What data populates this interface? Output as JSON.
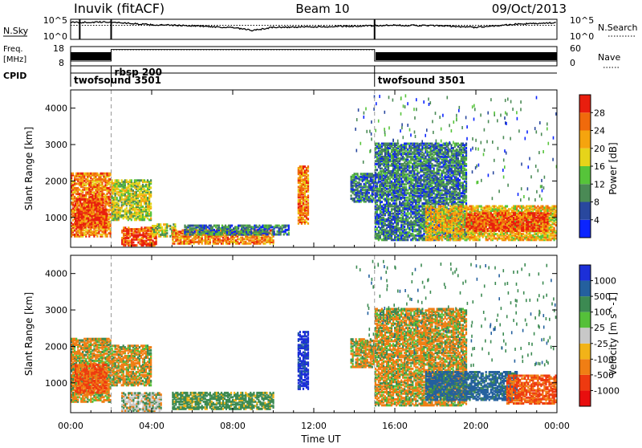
{
  "header": {
    "station": "Inuvik (fitACF)",
    "beam": "Beam 10",
    "date": "09/Oct/2013"
  },
  "top_panels": {
    "nsky_label": "N.Sky",
    "nsearch_label": "N.Search",
    "freq_label_line1": "Freq.",
    "freq_label_line2": "[MHz]",
    "nave_label": "Nave",
    "cpid_label": "CPID",
    "noise_ticks_left": [
      "10^5",
      "10^0"
    ],
    "noise_ticks_right": [
      "10^5",
      "10^0"
    ],
    "freq_ticks_left": [
      "18",
      "8"
    ],
    "nave_ticks_right": [
      "60",
      "0"
    ],
    "cpid_segments": [
      {
        "label": "twofsound 3501",
        "start_hour": 0.0,
        "end_hour": 2.0
      },
      {
        "label": "rbsp 200",
        "start_hour": 2.0,
        "end_hour": 15.0
      },
      {
        "label": "twofsound 3501",
        "start_hour": 15.0,
        "end_hour": 24.0
      }
    ]
  },
  "axes": {
    "xlabel": "Time UT",
    "x_ticks": [
      "00:00",
      "04:00",
      "08:00",
      "12:00",
      "16:00",
      "20:00",
      "00:00"
    ],
    "ylabel": "Slant Range [km]",
    "y_ticks": [
      "1000",
      "2000",
      "3000",
      "4000"
    ]
  },
  "colorbars": {
    "power": {
      "label": "Power [dB]",
      "ticks": [
        "4",
        "8",
        "12",
        "16",
        "20",
        "24",
        "28"
      ],
      "colors": [
        "#0b24ff",
        "#29489e",
        "#4a8a55",
        "#56c43a",
        "#e6d41a",
        "#f5a40e",
        "#f06a0c",
        "#e81e0e"
      ]
    },
    "velocity": {
      "label": "Velocity [m s^-1]",
      "ticks": [
        "1000",
        "500",
        "100",
        "25",
        "-25",
        "-100",
        "-500",
        "-1000"
      ],
      "colors": [
        "#1c2fd8",
        "#24609e",
        "#3c8a52",
        "#55c03a",
        "#c8c8c8",
        "#f2b318",
        "#f07e14",
        "#ee3a10",
        "#e80e0e"
      ]
    }
  },
  "chart_data": [
    {
      "type": "line",
      "title": "Inuvik (fitACF) Beam 10 09/Oct/2013",
      "series": [
        {
          "name": "N.Sky",
          "x_hours": [
            0,
            2,
            4,
            6,
            8,
            9,
            10,
            12,
            14,
            16,
            18,
            20,
            22,
            24
          ],
          "values_log10": [
            4.2,
            4.3,
            3.6,
            3.4,
            2.9,
            2.2,
            3.0,
            3.1,
            3.3,
            3.5,
            3.4,
            3.0,
            3.8,
            4.1
          ]
        },
        {
          "name": "N.Search",
          "x_hours": [
            0,
            4,
            8,
            12,
            16,
            20,
            24
          ],
          "values_log10": [
            3.5,
            3.5,
            3.5,
            3.5,
            3.5,
            3.5,
            3.5
          ]
        }
      ],
      "ylim": [
        0,
        5
      ]
    },
    {
      "type": "line",
      "series": [
        {
          "name": "Freq",
          "x_hours": [
            0,
            2,
            2,
            15,
            15,
            24
          ],
          "values": [
            10.5,
            10.5,
            16.5,
            16.5,
            10.5,
            10.5
          ]
        }
      ],
      "ylim": [
        8,
        18
      ]
    },
    {
      "type": "heatmap",
      "xlabel": "Time UT",
      "ylabel": "Slant Range [km]",
      "xlim_hours": [
        0,
        24
      ],
      "ylim": [
        180,
        4500
      ],
      "colorbar": "Power [dB]",
      "regions": [
        {
          "t0": 0.0,
          "t1": 2.0,
          "r0": 450,
          "r1": 2200,
          "level": 24
        },
        {
          "t0": 0.2,
          "t1": 1.8,
          "r0": 700,
          "r1": 1500,
          "level": 28
        },
        {
          "t0": 2.0,
          "t1": 4.0,
          "r0": 900,
          "r1": 2000,
          "level": 16
        },
        {
          "t0": 2.5,
          "t1": 4.2,
          "r0": 200,
          "r1": 700,
          "level": 28
        },
        {
          "t0": 4.0,
          "t1": 5.2,
          "r0": 450,
          "r1": 800,
          "level": 16
        },
        {
          "t0": 5.0,
          "t1": 10.0,
          "r0": 250,
          "r1": 650,
          "level": 24
        },
        {
          "t0": 5.6,
          "t1": 10.8,
          "r0": 500,
          "r1": 760,
          "level": 8
        },
        {
          "t0": 11.2,
          "t1": 11.7,
          "r0": 800,
          "r1": 2400,
          "level": 24
        },
        {
          "t0": 13.8,
          "t1": 15.0,
          "r0": 1400,
          "r1": 2200,
          "level": 8
        },
        {
          "t0": 15.0,
          "t1": 19.5,
          "r0": 350,
          "r1": 3000,
          "level": 8
        },
        {
          "t0": 17.5,
          "t1": 24.0,
          "r0": 350,
          "r1": 1300,
          "level": 20
        },
        {
          "t0": 19.5,
          "t1": 23.5,
          "r0": 600,
          "r1": 1100,
          "level": 28
        }
      ]
    },
    {
      "type": "heatmap",
      "xlabel": "Time UT",
      "ylabel": "Slant Range [km]",
      "xlim_hours": [
        0,
        24
      ],
      "ylim": [
        180,
        4500
      ],
      "colorbar": "Velocity [m s^-1]",
      "regions": [
        {
          "t0": 0.0,
          "t1": 2.0,
          "r0": 450,
          "r1": 2200,
          "level": -100
        },
        {
          "t0": 0.2,
          "t1": 1.8,
          "r0": 700,
          "r1": 1500,
          "level": -500
        },
        {
          "t0": 2.0,
          "t1": 4.0,
          "r0": 900,
          "r1": 2000,
          "level": -100
        },
        {
          "t0": 2.5,
          "t1": 4.5,
          "r0": 200,
          "r1": 700,
          "level": 0
        },
        {
          "t0": 5.0,
          "t1": 10.0,
          "r0": 250,
          "r1": 700,
          "level": 100
        },
        {
          "t0": 11.2,
          "t1": 11.7,
          "r0": 800,
          "r1": 2400,
          "level": 1000
        },
        {
          "t0": 13.8,
          "t1": 15.0,
          "r0": 1400,
          "r1": 2200,
          "level": -100
        },
        {
          "t0": 15.0,
          "t1": 19.5,
          "r0": 350,
          "r1": 3000,
          "level": -100
        },
        {
          "t0": 17.5,
          "t1": 22.0,
          "r0": 500,
          "r1": 1300,
          "level": 500
        },
        {
          "t0": 21.5,
          "t1": 24.0,
          "r0": 400,
          "r1": 1200,
          "level": -500
        }
      ]
    }
  ]
}
